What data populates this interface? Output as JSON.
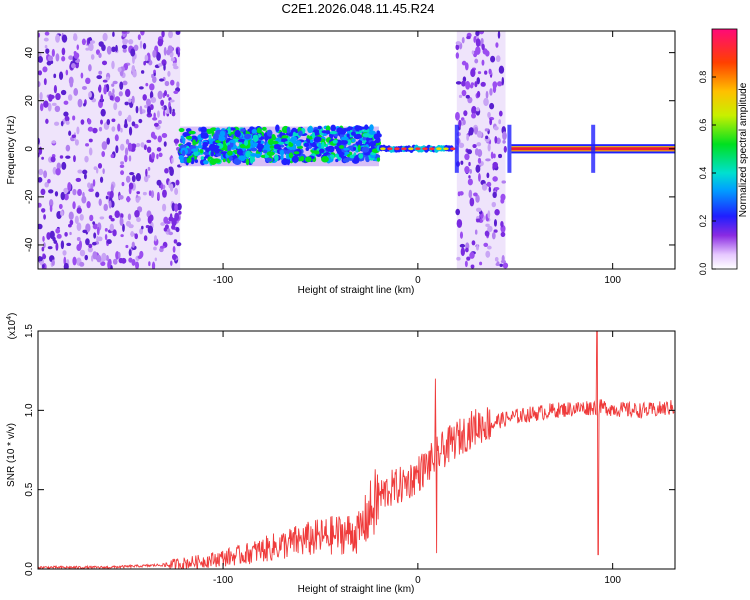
{
  "title": "C2E1.2026.048.11.45.R24",
  "chart_data": [
    {
      "type": "heatmap",
      "name": "spectrogram",
      "xlabel": "Height of straight line (km)",
      "ylabel": "Frequency (Hz)",
      "xlim": [
        -195,
        132
      ],
      "ylim": [
        -50,
        49
      ],
      "xticks": [
        -100,
        0,
        100
      ],
      "xtick_labels": [
        "-100",
        "0",
        "100"
      ],
      "yticks": [
        -40,
        -20,
        0,
        20,
        40
      ],
      "ytick_labels": [
        "-40",
        "-20",
        "0",
        "20",
        "40"
      ],
      "regions": [
        {
          "desc": "broadband noise",
          "x": [
            -195,
            -122
          ],
          "density": "high"
        },
        {
          "desc": "noisy carrier band",
          "x": [
            -122,
            -20
          ],
          "y": [
            -6,
            8
          ]
        },
        {
          "desc": "carrier",
          "x": [
            -20,
            18
          ],
          "y": [
            -2,
            2
          ]
        },
        {
          "desc": "broadband noise",
          "x": [
            20,
            45
          ],
          "density": "high"
        },
        {
          "desc": "strong carrier",
          "x": [
            48,
            132
          ],
          "y": [
            -1.5,
            1.5
          ]
        }
      ],
      "colorbar": {
        "label": "Normalized spectral amplitude",
        "range": [
          0,
          1
        ],
        "ticks": [
          0.0,
          0.2,
          0.4,
          0.6,
          0.8
        ],
        "tick_labels": [
          "0.0",
          "0.2",
          "0.4",
          "0.6",
          "0.8"
        ]
      }
    },
    {
      "type": "line",
      "name": "snr",
      "xlabel": "Height of straight line (km)",
      "ylabel": "SNR (10 * v/v)",
      "scale_label": "(x10",
      "scale_exp": "4",
      "xlim": [
        -195,
        132
      ],
      "ylim": [
        0,
        1.5
      ],
      "xticks": [
        -100,
        0,
        100
      ],
      "xtick_labels": [
        "-100",
        "0",
        "100"
      ],
      "yticks": [
        0.0,
        0.5,
        1.0,
        1.5
      ],
      "ytick_labels": [
        "0.0",
        "0.5",
        "1.0",
        "1.5"
      ],
      "color": "#ef3b3b",
      "x": [
        -195,
        -160,
        -140,
        -125,
        -110,
        -100,
        -90,
        -80,
        -70,
        -60,
        -50,
        -40,
        -30,
        -25,
        -20,
        -15,
        -10,
        -5,
        0,
        5,
        10,
        20,
        30,
        40,
        50,
        60,
        70,
        80,
        90,
        95,
        100,
        110,
        120,
        132
      ],
      "y": [
        0.01,
        0.01,
        0.02,
        0.03,
        0.05,
        0.07,
        0.09,
        0.12,
        0.15,
        0.18,
        0.2,
        0.22,
        0.23,
        0.35,
        0.45,
        0.5,
        0.52,
        0.55,
        0.6,
        0.65,
        0.72,
        0.82,
        0.9,
        0.93,
        0.96,
        0.98,
        1.0,
        1.01,
        1.02,
        1.02,
        1.01,
        1.0,
        1.0,
        1.02
      ],
      "spikes": [
        {
          "x": 9,
          "ymax": 1.2,
          "ymin": 0.1
        },
        {
          "x": 92,
          "ymax": 1.5,
          "ymin": 0.09
        }
      ]
    }
  ]
}
